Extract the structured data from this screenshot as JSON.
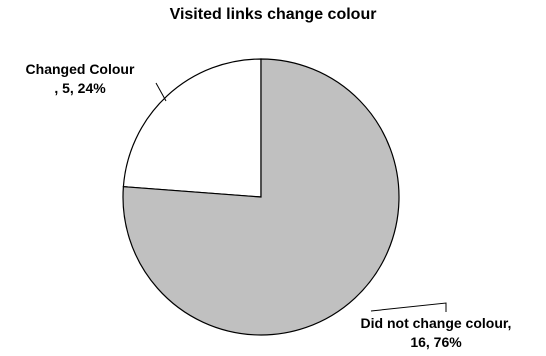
{
  "chart_data": {
    "type": "pie",
    "title": "Visited links change colour",
    "start_angle_deg": 0,
    "direction": "counterclockwise",
    "legend": "none",
    "slices": [
      {
        "category": "Changed Colour",
        "value": 5,
        "percent": "24%",
        "label_lines": [
          "Changed Colour",
          ", 5, 24%"
        ],
        "color": "#ffffff"
      },
      {
        "category": "Did not change colour",
        "value": 16,
        "percent": "76%",
        "label_lines": [
          "Did not change colour,",
          "16, 76%"
        ],
        "color": "#c0c0c0"
      }
    ],
    "outline_color": "#000000"
  }
}
